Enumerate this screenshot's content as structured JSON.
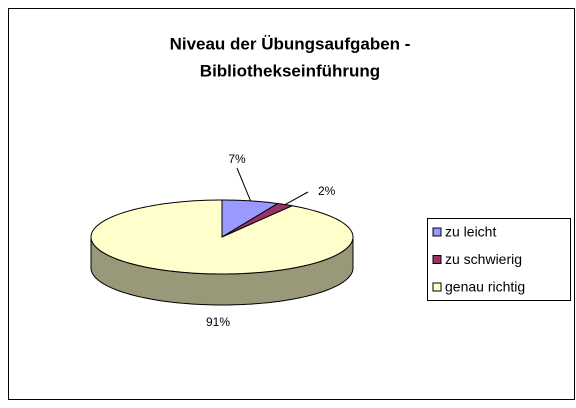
{
  "chart_data": {
    "type": "pie3d",
    "title": [
      "Niveau der Übungsaufgaben -",
      "Bibliothekseinführung"
    ],
    "categories": [
      "zu leicht",
      "zu schwierig",
      "genau richtig"
    ],
    "values": [
      7,
      2,
      91
    ],
    "value_labels": [
      "7%",
      "2%",
      "91%"
    ],
    "colors": [
      "#9999ff",
      "#993366",
      "#ffffcc"
    ],
    "legend": "right"
  }
}
